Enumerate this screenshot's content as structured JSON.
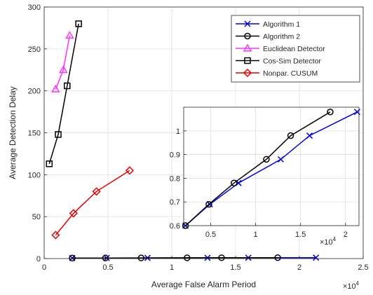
{
  "chart_data": [
    {
      "type": "line",
      "xlabel": "Average False Alarm Period",
      "ylabel": "Average Detection Delay",
      "x_multiplier_label": "×10",
      "x_multiplier_exp": "4",
      "xlim": [
        0,
        25000
      ],
      "ylim": [
        0,
        300
      ],
      "xticks": [
        0,
        5000,
        10000,
        15000,
        20000,
        25000
      ],
      "xtick_labels": [
        "0",
        "0.5",
        "1",
        "1.5",
        "2",
        "2.5"
      ],
      "yticks": [
        0,
        50,
        100,
        150,
        200,
        250,
        300
      ],
      "ytick_labels": [
        "0",
        "50",
        "100",
        "150",
        "200",
        "250",
        "300"
      ],
      "grid": true,
      "legend_position": "top-right",
      "series": [
        {
          "name": "Algorithm 1",
          "color": "#0000e6",
          "marker": "x",
          "x": [
            2200,
            4900,
            8100,
            12800,
            16000,
            21300
          ],
          "y": [
            0.6,
            0.69,
            0.78,
            0.88,
            0.98,
            1.08
          ]
        },
        {
          "name": "Algorithm 2",
          "color": "#000000",
          "marker": "circle",
          "x": [
            2200,
            4800,
            7600,
            11200,
            13900,
            18300
          ],
          "y": [
            0.6,
            0.69,
            0.78,
            0.88,
            0.98,
            1.08
          ]
        },
        {
          "name": "Euclidean Detector",
          "color": "#ff33ff",
          "marker": "triangle",
          "x": [
            900,
            1500,
            2000
          ],
          "y": [
            202,
            225,
            266
          ]
        },
        {
          "name": "Cos-Sim Detector",
          "color": "#000000",
          "marker": "square",
          "x": [
            400,
            1100,
            1800,
            2700
          ],
          "y": [
            113,
            148,
            206,
            280
          ]
        },
        {
          "name": "Nonpar. CUSUM",
          "color": "#e60000",
          "marker": "diamond",
          "x": [
            900,
            2300,
            4100,
            6700
          ],
          "y": [
            28,
            54,
            80,
            105
          ]
        }
      ]
    },
    {
      "type": "line",
      "inset": true,
      "x_multiplier_label": "×10",
      "x_multiplier_exp": "4",
      "xlim": [
        2000,
        21500
      ],
      "ylim": [
        0.6,
        1.1
      ],
      "xticks": [
        5000,
        10000,
        15000,
        20000
      ],
      "xtick_labels": [
        "0.5",
        "1",
        "1.5",
        "2"
      ],
      "yticks": [
        0.6,
        0.7,
        0.8,
        0.9,
        1.0
      ],
      "ytick_labels": [
        "0.6",
        "0.7",
        "0.8",
        "0.9",
        "1"
      ],
      "grid": true,
      "series": [
        {
          "name": "Algorithm 1",
          "color": "#0000e6",
          "marker": "x",
          "x": [
            2200,
            4900,
            8100,
            12800,
            16000,
            21300
          ],
          "y": [
            0.6,
            0.69,
            0.78,
            0.88,
            0.98,
            1.08
          ]
        },
        {
          "name": "Algorithm 2",
          "color": "#000000",
          "marker": "circle",
          "x": [
            2200,
            4800,
            7600,
            11200,
            13900,
            18300
          ],
          "y": [
            0.6,
            0.69,
            0.78,
            0.88,
            0.98,
            1.08
          ]
        }
      ]
    }
  ]
}
